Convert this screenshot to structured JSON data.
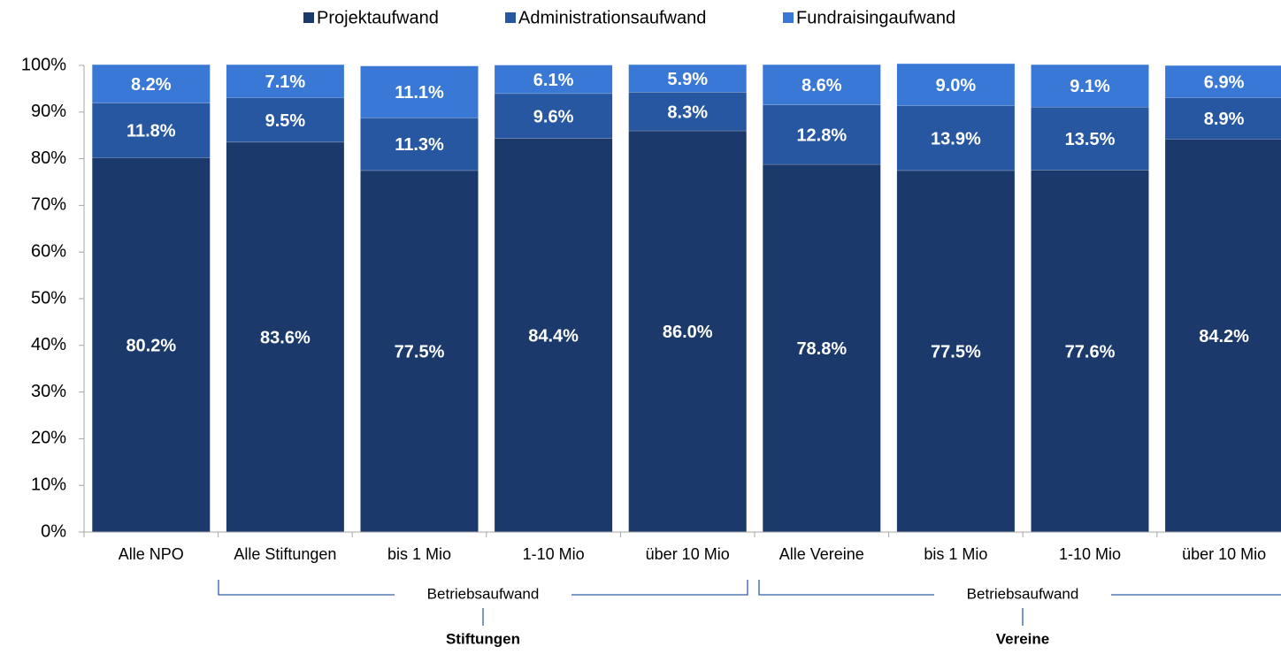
{
  "chart_data": {
    "type": "stacked_bar",
    "categories": [
      "Alle NPO",
      "Alle Stiftungen",
      "bis 1 Mio",
      "1-10 Mio",
      "über 10 Mio",
      "Alle Vereine",
      "bis 1 Mio",
      "1-10 Mio",
      "über 10 Mio"
    ],
    "series": [
      {
        "name": "Projektaufwand",
        "color": "#1b3a6b",
        "values": [
          80.2,
          83.6,
          77.5,
          84.4,
          86.0,
          78.8,
          77.5,
          77.6,
          84.2
        ],
        "value_labels": [
          "80.2%",
          "83.6%",
          "77.5%",
          "84.4%",
          "86.0%",
          "78.8%",
          "77.5%",
          "77.6%",
          "84.2%"
        ]
      },
      {
        "name": "Administrationsaufwand",
        "color": "#2857a1",
        "values": [
          11.8,
          9.5,
          11.3,
          9.6,
          8.3,
          12.8,
          13.9,
          13.5,
          8.9
        ],
        "value_labels": [
          "11.8%",
          "9.5%",
          "11.3%",
          "9.6%",
          "8.3%",
          "12.8%",
          "13.9%",
          "13.5%",
          "8.9%"
        ]
      },
      {
        "name": "Fundraisingaufwand",
        "color": "#3a78d6",
        "values": [
          8.2,
          7.1,
          11.1,
          6.1,
          5.9,
          8.6,
          9.0,
          9.1,
          6.9
        ],
        "value_labels": [
          "8.2%",
          "7.1%",
          "11.1%",
          "6.1%",
          "5.9%",
          "8.6%",
          "9.0%",
          "9.1%",
          "6.9%"
        ]
      }
    ],
    "ylim": [
      0,
      100
    ],
    "yticks": [
      {
        "value": 0,
        "label": "0%"
      },
      {
        "value": 10,
        "label": "10%"
      },
      {
        "value": 20,
        "label": "20%"
      },
      {
        "value": 30,
        "label": "30%"
      },
      {
        "value": 40,
        "label": "40%"
      },
      {
        "value": 50,
        "label": "50%"
      },
      {
        "value": 60,
        "label": "60%"
      },
      {
        "value": 70,
        "label": "70%"
      },
      {
        "value": 80,
        "label": "80%"
      },
      {
        "value": 90,
        "label": "90%"
      },
      {
        "value": 100,
        "label": "100%"
      }
    ],
    "legend": "top",
    "groups": [
      {
        "label": "Betriebsaufwand",
        "name": "Stiftungen"
      },
      {
        "label": "Betriebsaufwand",
        "name": "Vereine"
      }
    ]
  }
}
